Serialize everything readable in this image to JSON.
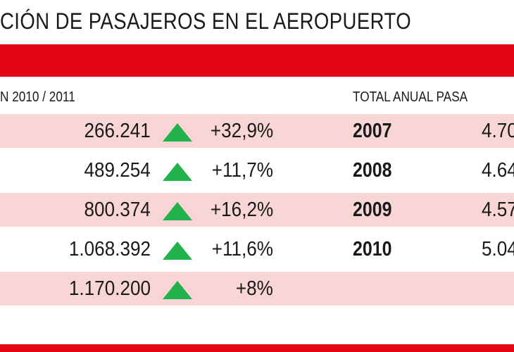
{
  "title": "CIÓN DE PASAJEROS EN EL AEROPUERTO",
  "left_header": "N 2010 / 2011",
  "right_header": "TOTAL ANUAL PASA",
  "colors": {
    "accent_red": "#e30613",
    "row_shade": "#f9d6d6",
    "up_arrow": "#21b24b"
  },
  "rows": [
    {
      "value": "266.241",
      "trend_icon": "up-triangle",
      "change": "+32,9%",
      "year": "2007",
      "annual_total": "4.70"
    },
    {
      "value": "489.254",
      "trend_icon": "up-triangle",
      "change": "+11,7%",
      "year": "2008",
      "annual_total": "4.64"
    },
    {
      "value": "800.374",
      "trend_icon": "up-triangle",
      "change": "+16,2%",
      "year": "2009",
      "annual_total": "4.57"
    },
    {
      "value": "1.068.392",
      "trend_icon": "up-triangle",
      "change": "+11,6%",
      "year": "2010",
      "annual_total": "5.04"
    },
    {
      "value": "1.170.200",
      "trend_icon": "up-triangle",
      "change": "+8%",
      "year": "",
      "annual_total": ""
    }
  ]
}
